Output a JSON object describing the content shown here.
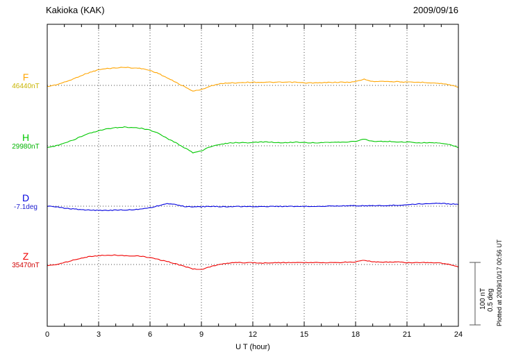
{
  "notes": {
    "plotted_at": "Plotted at 2009/10/17 00:56 UT"
  },
  "chart_data": {
    "type": "line",
    "title": "Kakioka (KAK)",
    "date": "2009/09/16",
    "xlabel": "U T (hour)",
    "x_min": 0,
    "x_max": 24,
    "x_ticks": [
      0,
      3,
      6,
      9,
      12,
      15,
      18,
      21,
      24
    ],
    "x_start": 0,
    "x_step": 0.5,
    "grid": "dotted vertical lines every 3 hours; dotted horizontal baseline per channel",
    "scale_bar": {
      "nt_label": "100 nT",
      "deg_label": "0.5 deg",
      "nT": 100,
      "deg": 0.5
    },
    "series": [
      {
        "name": "F",
        "unit": "nT",
        "baseline_value": 46440,
        "baseline_label": "46440nT",
        "color": "#FFA500",
        "value_color": "#C8B400",
        "offsets": [
          -2,
          1,
          5,
          10,
          16,
          21,
          25,
          27,
          28,
          29,
          28,
          27,
          24,
          19,
          12,
          5,
          -2,
          -9,
          -7,
          -1,
          2,
          4,
          4,
          5,
          5,
          5,
          5,
          5,
          5,
          5,
          4,
          4,
          4,
          5,
          5,
          5,
          6,
          10,
          6,
          7,
          6,
          6,
          5,
          5,
          5,
          4,
          3,
          1,
          -3
        ]
      },
      {
        "name": "H",
        "unit": "nT",
        "baseline_value": 29980,
        "baseline_label": "29980nT",
        "color": "#00C800",
        "value_color": "#00B400",
        "offsets": [
          -3,
          0,
          4,
          9,
          15,
          20,
          24,
          27,
          29,
          30,
          29,
          28,
          25,
          20,
          12,
          5,
          -3,
          -11,
          -8,
          -2,
          2,
          4,
          5,
          5,
          5,
          6,
          6,
          5,
          5,
          6,
          5,
          5,
          5,
          5,
          6,
          6,
          7,
          11,
          7,
          7,
          7,
          6,
          6,
          5,
          5,
          5,
          4,
          2,
          -3
        ]
      },
      {
        "name": "D",
        "unit": "deg",
        "baseline_value": -7.1,
        "baseline_label": "-7.1deg",
        "color": "#0000E0",
        "value_color": "#2020D0",
        "offsets": [
          0,
          -0.005,
          -0.015,
          -0.022,
          -0.028,
          -0.032,
          -0.033,
          -0.033,
          -0.032,
          -0.03,
          -0.028,
          -0.022,
          -0.012,
          0.004,
          0.022,
          0.012,
          -0.002,
          -0.006,
          -0.004,
          -0.002,
          -0.003,
          -0.004,
          -0.003,
          -0.002,
          -0.002,
          -0.003,
          -0.003,
          -0.002,
          -0.002,
          -0.002,
          -0.001,
          0,
          0,
          0.001,
          0.002,
          0.003,
          0.004,
          0.003,
          0.004,
          0.005,
          0.006,
          0.008,
          0.012,
          0.016,
          0.02,
          0.022,
          0.022,
          0.018,
          0.014
        ]
      },
      {
        "name": "Z",
        "unit": "nT",
        "baseline_value": 35470,
        "baseline_label": "35470nT",
        "color": "#F00000",
        "value_color": "#D00000",
        "offsets": [
          -2,
          0,
          3,
          7,
          10,
          13,
          14,
          15,
          15,
          14,
          14,
          13,
          11,
          8,
          5,
          1,
          -3,
          -7,
          -8,
          -4,
          0,
          2,
          3,
          3,
          3,
          2,
          3,
          3,
          3,
          3,
          3,
          3,
          3,
          3,
          3,
          4,
          4,
          7,
          4,
          4,
          4,
          4,
          3,
          3,
          3,
          3,
          2,
          0,
          -4
        ]
      }
    ]
  }
}
